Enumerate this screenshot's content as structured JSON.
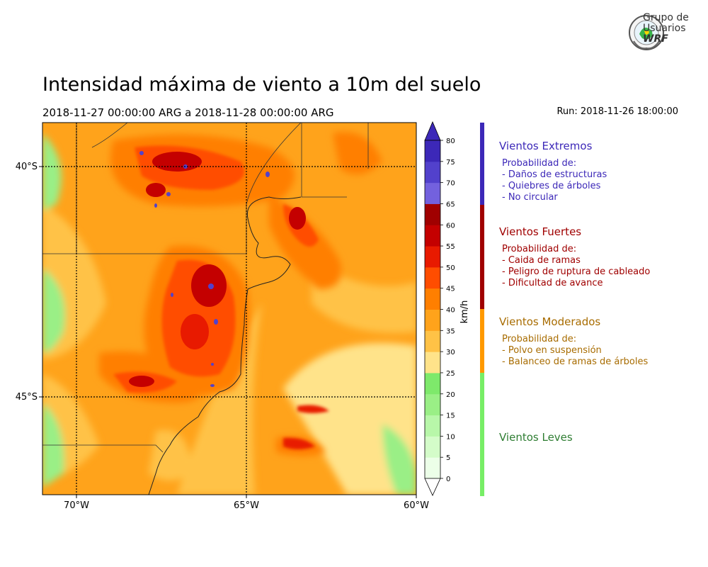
{
  "header": {
    "title": "Intensidad máxima de viento a 10m del suelo",
    "period": "2018-11-27 00:00:00 ARG  a  2018-11-28 00:00:00 ARG",
    "run": "Run: 2018-11-26 18:00:00"
  },
  "logo": {
    "line1": "Grupo de",
    "line2": "Usuarios",
    "line3": "WRF"
  },
  "map": {
    "lat_labels": [
      "40°S",
      "45°S"
    ],
    "lon_labels": [
      "70°W",
      "65°W",
      "60°W"
    ],
    "extent": {
      "lon_min": -71,
      "lon_max": -60,
      "lat_min": -47.2,
      "lat_max": -39.1
    }
  },
  "colorbar": {
    "unit": "km/h",
    "levels": [
      0,
      5,
      10,
      15,
      20,
      25,
      30,
      35,
      40,
      45,
      50,
      55,
      60,
      65,
      70,
      75,
      80
    ],
    "colors": [
      "#ecffe8",
      "#d4fcc9",
      "#b8f7a9",
      "#9aef86",
      "#7ee96b",
      "#ffe38a",
      "#ffc246",
      "#ffa31b",
      "#ff7f00",
      "#ff4d00",
      "#e81a00",
      "#c40000",
      "#a00000",
      "#7361de",
      "#5241cc",
      "#3c28b8"
    ],
    "min_color": "#ffffff",
    "max_color": "#3c28b8"
  },
  "legend": {
    "extreme": {
      "title": "Vientos Extremos",
      "color": "#3c28b8",
      "lines": [
        "Probabilidad de:",
        "- Daños de estructuras",
        "- Quiebres de árboles",
        "- No circular"
      ]
    },
    "strong": {
      "title": "Vientos Fuertes",
      "color": "#a00000",
      "lines": [
        "Probabilidad de:",
        "- Caida de ramas",
        "- Peligro de ruptura de cableado",
        "- Dificultad de avance"
      ]
    },
    "moderate": {
      "title": "Vientos Moderados",
      "color": "#a86c00",
      "lines": [
        "Probabilidad de:",
        "- Polvo en suspensión",
        "- Balanceo de ramas de árboles"
      ]
    },
    "light": {
      "title": "Vientos Leves",
      "color": "#2e7d32"
    },
    "bar_colors": [
      "#3c28b8",
      "#a00000",
      "#ff9900",
      "#77ee66"
    ]
  }
}
